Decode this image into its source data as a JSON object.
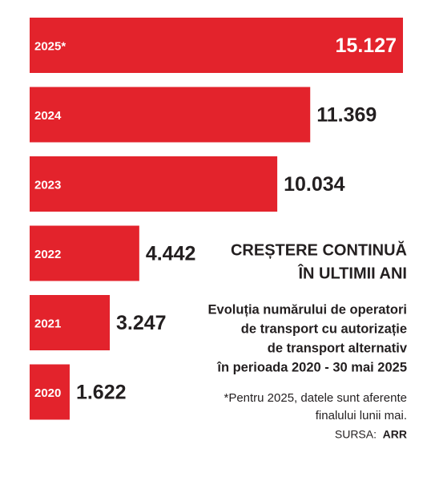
{
  "chart_data": {
    "type": "bar",
    "orientation": "horizontal",
    "color": "#e3232c",
    "categories": [
      "2025*",
      "2024",
      "2023",
      "2022",
      "2021",
      "2020"
    ],
    "values": [
      15127,
      11369,
      10034,
      4442,
      3247,
      1622
    ],
    "value_labels": [
      "15.127",
      "11.369",
      "10.034",
      "4.442",
      "3.247",
      "1.622"
    ],
    "title": [
      "CREȘTERE CONTINUĂ",
      "ÎN ULTIMII ANI"
    ],
    "subtitle": [
      "Evoluția numărului de operatori",
      "de transport cu autorizație",
      "de transport alternativ",
      "în perioada 2020 - 30 mai 2025"
    ],
    "footnote": [
      "*Pentru 2025, datele sunt aferente",
      "finalului lunii mai."
    ],
    "source_label": "SURSA:",
    "source": "ARR"
  }
}
